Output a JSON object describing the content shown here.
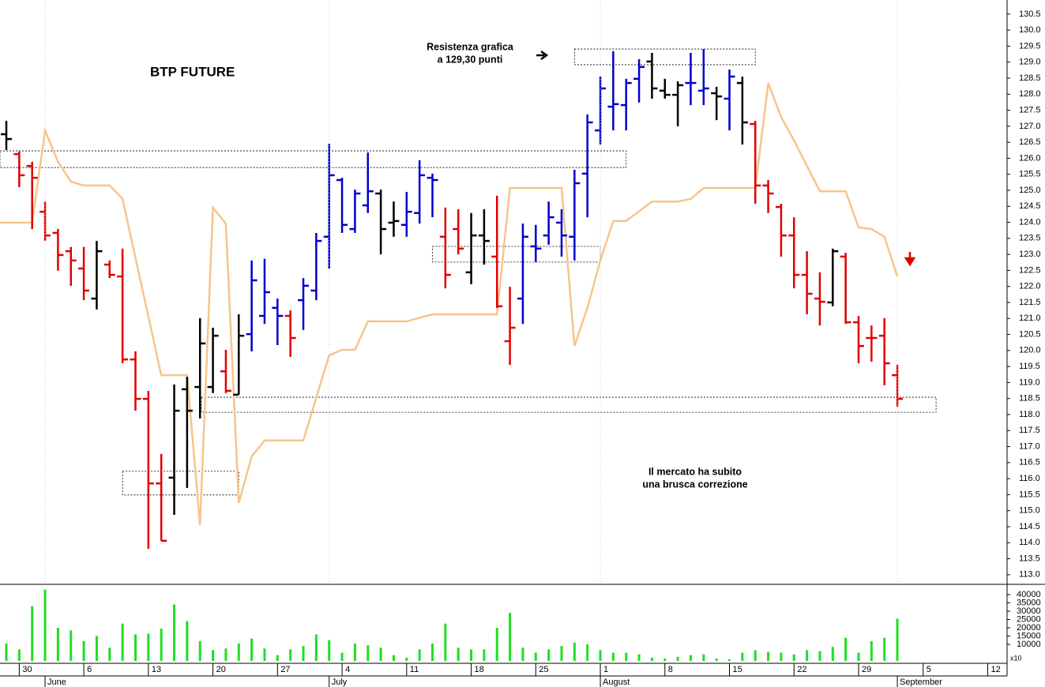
{
  "chart_data": [
    {
      "type": "ohlc",
      "title": "BTP FUTURE",
      "x": [
        0,
        1,
        2,
        3,
        4,
        5,
        6,
        7,
        8,
        9,
        10,
        11,
        12,
        13,
        14,
        15,
        16,
        17,
        18,
        19,
        20,
        21,
        22,
        23,
        24,
        25,
        26,
        27,
        28,
        29,
        30,
        31,
        32,
        33,
        34,
        35,
        36,
        37,
        38,
        39,
        40,
        41,
        42,
        43,
        44,
        45,
        46,
        47,
        48,
        49,
        50,
        51,
        52,
        53,
        54,
        55,
        56,
        57,
        58,
        59,
        60,
        61,
        62,
        63,
        64,
        65,
        66,
        67,
        68,
        69
      ],
      "open": [
        126.75,
        126.13,
        125.76,
        124.33,
        123.67,
        123.1,
        122.56,
        121.62,
        122.68,
        122.31,
        119.72,
        118.49,
        115.85,
        116.03,
        118.79,
        118.86,
        118.86,
        119.35,
        118.62,
        120.51,
        121.08,
        121.33,
        121.08,
        121.57,
        121.87,
        123.55,
        125.32,
        123.79,
        124.53,
        124.9,
        123.99,
        123.92,
        124.29,
        125.39,
        123.55,
        123.79,
        122.44,
        123.59,
        122.93,
        120.29,
        121.62,
        123.25,
        123.59,
        123.99,
        123.55,
        125.52,
        126.87,
        127.61,
        127.66,
        128.48,
        129.02,
        128.11,
        127.98,
        128.35,
        128.11,
        128.03,
        127.86,
        128.35,
        127.07,
        125.15,
        124.48,
        123.59,
        122.36,
        121.62,
        121.5,
        122.93,
        120.88,
        120.39,
        120.46,
        119.23
      ],
      "high": [
        127.17,
        126.21,
        125.89,
        124.65,
        123.79,
        123.23,
        123.23,
        123.42,
        122.81,
        123.18,
        119.97,
        118.74,
        116.77,
        118.94,
        119.18,
        121.01,
        120.71,
        120.02,
        121.13,
        122.81,
        122.86,
        121.62,
        121.25,
        122.26,
        123.67,
        126.45,
        125.39,
        125.02,
        126.18,
        125.02,
        124.65,
        124.95,
        125.94,
        125.52,
        124.46,
        124.41,
        124.29,
        124.41,
        124.83,
        121.99,
        123.96,
        123.92,
        124.65,
        124.41,
        125.64,
        127.37,
        128.55,
        129.34,
        128.48,
        129.09,
        129.29,
        128.48,
        128.4,
        129.29,
        129.41,
        128.23,
        128.77,
        128.55,
        127.17,
        125.32,
        124.58,
        124.16,
        123.1,
        122.44,
        123.18,
        123.05,
        121.08,
        120.78,
        121.01,
        119.55
      ],
      "low": [
        126.26,
        125.1,
        123.79,
        123.42,
        122.49,
        122.02,
        121.57,
        121.28,
        122.26,
        119.6,
        118.12,
        113.81,
        114.06,
        114.87,
        115.71,
        117.88,
        118.67,
        118.67,
        118.62,
        119.97,
        120.83,
        120.17,
        119.8,
        120.64,
        121.57,
        122.56,
        123.67,
        123.67,
        124.29,
        123.0,
        123.55,
        123.55,
        123.96,
        124.16,
        121.94,
        123.0,
        122.07,
        122.68,
        121.33,
        119.55,
        120.83,
        122.76,
        123.3,
        122.93,
        122.81,
        124.16,
        126.43,
        126.87,
        126.87,
        127.74,
        127.86,
        127.86,
        127.0,
        127.66,
        127.66,
        127.19,
        126.87,
        126.43,
        124.58,
        124.29,
        122.93,
        121.94,
        121.13,
        120.78,
        121.38,
        120.83,
        119.6,
        119.65,
        118.91,
        118.25
      ],
      "close": [
        126.6,
        125.47,
        125.39,
        123.59,
        122.98,
        122.81,
        121.87,
        123.1,
        122.36,
        119.72,
        118.49,
        115.85,
        114.06,
        118.12,
        118.12,
        120.22,
        120.46,
        118.74,
        120.46,
        122.19,
        121.82,
        121.08,
        120.39,
        122.02,
        123.42,
        125.47,
        123.92,
        124.9,
        124.97,
        123.79,
        124.04,
        124.33,
        125.47,
        125.32,
        122.36,
        123.18,
        123.59,
        123.42,
        121.38,
        120.71,
        123.55,
        123.18,
        124.16,
        123.59,
        125.22,
        127.12,
        128.18,
        127.69,
        128.35,
        128.85,
        128.18,
        127.98,
        128.28,
        128.35,
        128.18,
        127.93,
        128.55,
        127.12,
        125.15,
        124.9,
        123.59,
        122.36,
        121.77,
        121.52,
        123.1,
        120.88,
        120.14,
        120.39,
        119.6,
        118.49
      ],
      "bar_colors": [
        "#000000",
        "#e00000",
        "#e00000",
        "#e00000",
        "#e00000",
        "#e00000",
        "#e00000",
        "#000000",
        "#e00000",
        "#e00000",
        "#e00000",
        "#e00000",
        "#e00000",
        "#000000",
        "#000000",
        "#000000",
        "#000000",
        "#e00000",
        "#000000",
        "#0000cc",
        "#0000cc",
        "#0000cc",
        "#e00000",
        "#0000cc",
        "#0000cc",
        "#0000cc",
        "#0000cc",
        "#0000cc",
        "#0000cc",
        "#000000",
        "#000000",
        "#0000cc",
        "#0000cc",
        "#0000cc",
        "#e00000",
        "#e00000",
        "#000000",
        "#000000",
        "#e00000",
        "#e00000",
        "#0000cc",
        "#0000cc",
        "#0000cc",
        "#0000cc",
        "#0000cc",
        "#0000cc",
        "#0000cc",
        "#0000cc",
        "#0000cc",
        "#0000cc",
        "#000000",
        "#000000",
        "#000000",
        "#0000cc",
        "#0000cc",
        "#000000",
        "#0000cc",
        "#000000",
        "#e00000",
        "#e00000",
        "#e00000",
        "#e00000",
        "#e00000",
        "#e00000",
        "#000000",
        "#e00000",
        "#e00000",
        "#e00000",
        "#e00000",
        "#e00000"
      ],
      "series": [
        {
          "color": "#f5c58c",
          "x": [
            -0.5,
            2,
            3,
            4,
            5,
            6,
            8,
            9,
            12,
            14,
            15,
            16,
            17,
            18,
            19,
            20,
            23,
            25,
            26,
            27,
            28,
            31,
            33,
            38,
            39,
            43,
            44,
            45,
            46,
            47,
            48,
            50,
            52,
            53,
            54,
            58,
            59,
            60,
            61,
            63,
            65,
            66,
            67,
            68,
            69
          ],
          "values": [
            123.99,
            123.99,
            126.87,
            125.89,
            125.27,
            125.15,
            125.15,
            124.73,
            119.23,
            119.23,
            114.55,
            124.46,
            123.96,
            115.24,
            116.69,
            117.19,
            117.19,
            119.85,
            120.02,
            120.02,
            120.91,
            120.91,
            121.13,
            121.13,
            125.07,
            125.07,
            120.14,
            121.33,
            122.81,
            124.04,
            124.04,
            124.65,
            124.65,
            124.73,
            125.07,
            125.07,
            128.35,
            127.29,
            126.55,
            124.97,
            124.97,
            123.84,
            123.79,
            123.55,
            122.31
          ]
        }
      ],
      "zones": [
        {
          "x": [
            -0.49,
            48.0
          ],
          "y": [
            125.71,
            126.23
          ]
        },
        {
          "x": [
            44,
            58
          ],
          "y": [
            128.92,
            129.41
          ]
        },
        {
          "x": [
            33,
            46
          ],
          "y": [
            122.76,
            123.25
          ]
        },
        {
          "x": [
            9,
            18
          ],
          "y": [
            115.49,
            116.23
          ]
        },
        {
          "x": [
            15.1,
            72
          ],
          "y": [
            118.07,
            118.54
          ]
        }
      ],
      "annotations": [
        {
          "text": "Resistenza grafica",
          "color": "#000000"
        },
        {
          "text": "a 129,30 punti",
          "color": "#000000"
        },
        {
          "text": "Il mercato ha subito",
          "color": "#e00000"
        },
        {
          "text": "una brusca correzione",
          "color": "#e00000"
        }
      ],
      "xlim": [
        -0.49,
        77.5
      ],
      "ylim": [
        112.7,
        130.94
      ],
      "yticks": [
        {
          "value": 113,
          "label": "113.0"
        },
        113.5,
        {
          "value": 114,
          "label": "114.0"
        },
        114.5,
        {
          "value": 115,
          "label": "115.0"
        },
        115.5,
        {
          "value": 116,
          "label": "116.0"
        },
        116.5,
        {
          "value": 117,
          "label": "117.0"
        },
        117.5,
        {
          "value": 118,
          "label": "118.0"
        },
        118.5,
        {
          "value": 119,
          "label": "119.0"
        },
        119.5,
        {
          "value": 120,
          "label": "120.0"
        },
        120.5,
        {
          "value": 121,
          "label": "121.0"
        },
        121.5,
        {
          "value": 122,
          "label": "122.0"
        },
        122.5,
        {
          "value": 123,
          "label": "123.0"
        },
        123.5,
        {
          "value": 124,
          "label": "124.0"
        },
        124.5,
        {
          "value": 125,
          "label": "125.0"
        },
        125.5,
        {
          "value": 126,
          "label": "126.0"
        },
        126.5,
        {
          "value": 127,
          "label": "127.0"
        },
        127.5,
        {
          "value": 128,
          "label": "128.0"
        },
        128.5,
        {
          "value": 129,
          "label": "129.0"
        },
        129.5,
        {
          "value": 130,
          "label": "130.0"
        },
        130.5
      ]
    },
    {
      "type": "bar",
      "color": "#22dd22",
      "x": [
        0,
        1,
        2,
        3,
        4,
        5,
        6,
        7,
        8,
        9,
        10,
        11,
        12,
        13,
        14,
        15,
        16,
        17,
        18,
        19,
        20,
        21,
        22,
        23,
        24,
        25,
        26,
        27,
        28,
        29,
        30,
        31,
        32,
        33,
        34,
        35,
        36,
        37,
        38,
        39,
        40,
        41,
        42,
        43,
        44,
        45,
        46,
        47,
        48,
        49,
        50,
        51,
        52,
        53,
        54,
        55,
        56,
        57,
        58,
        59,
        60,
        61,
        62,
        63,
        64,
        65,
        66,
        67,
        68,
        69
      ],
      "values": [
        10500,
        7000,
        33000,
        43000,
        20000,
        18500,
        12000,
        15000,
        8000,
        22500,
        16000,
        16500,
        19500,
        34000,
        24000,
        12000,
        6500,
        7500,
        10500,
        13500,
        7500,
        3500,
        7000,
        9000,
        16000,
        12500,
        5000,
        10500,
        9500,
        8000,
        3500,
        2000,
        7000,
        10500,
        22500,
        8000,
        7000,
        7000,
        20000,
        29000,
        8000,
        5000,
        7000,
        9000,
        11000,
        10000,
        6500,
        5000,
        5000,
        4000,
        2000,
        1500,
        2500,
        3500,
        4000,
        1500,
        1000,
        5000,
        6500,
        5500,
        5000,
        4000,
        6500,
        6000,
        8500,
        14000,
        5000,
        12000,
        14000,
        25500
      ],
      "axis_note": "x10",
      "xlim": [
        -0.49,
        77.5
      ],
      "ylim": [
        0,
        45700
      ],
      "yticks": [
        10000,
        15000,
        20000,
        25000,
        30000,
        35000,
        40000
      ],
      "xticks": [
        {
          "value": 1,
          "label": "30"
        },
        {
          "value": 6,
          "label": "6"
        },
        {
          "value": 11,
          "label": "13"
        },
        {
          "value": 16,
          "label": "20"
        },
        {
          "value": 21,
          "label": "27"
        },
        {
          "value": 26,
          "label": "4"
        },
        {
          "value": 31,
          "label": "11"
        },
        {
          "value": 36,
          "label": "18"
        },
        {
          "value": 41,
          "label": "25"
        },
        {
          "value": 46,
          "label": "1"
        },
        {
          "value": 51,
          "label": "8"
        },
        {
          "value": 56,
          "label": "15"
        },
        {
          "value": 61,
          "label": "22"
        },
        {
          "value": 66,
          "label": "29"
        },
        {
          "value": 71,
          "label": "5"
        },
        {
          "value": 76,
          "label": "12"
        }
      ],
      "month_ticks": [
        {
          "value": 3,
          "label": "June"
        },
        {
          "value": 25,
          "label": "July"
        },
        {
          "value": 46,
          "label": "August"
        },
        {
          "value": 69,
          "label": "September"
        }
      ]
    }
  ]
}
